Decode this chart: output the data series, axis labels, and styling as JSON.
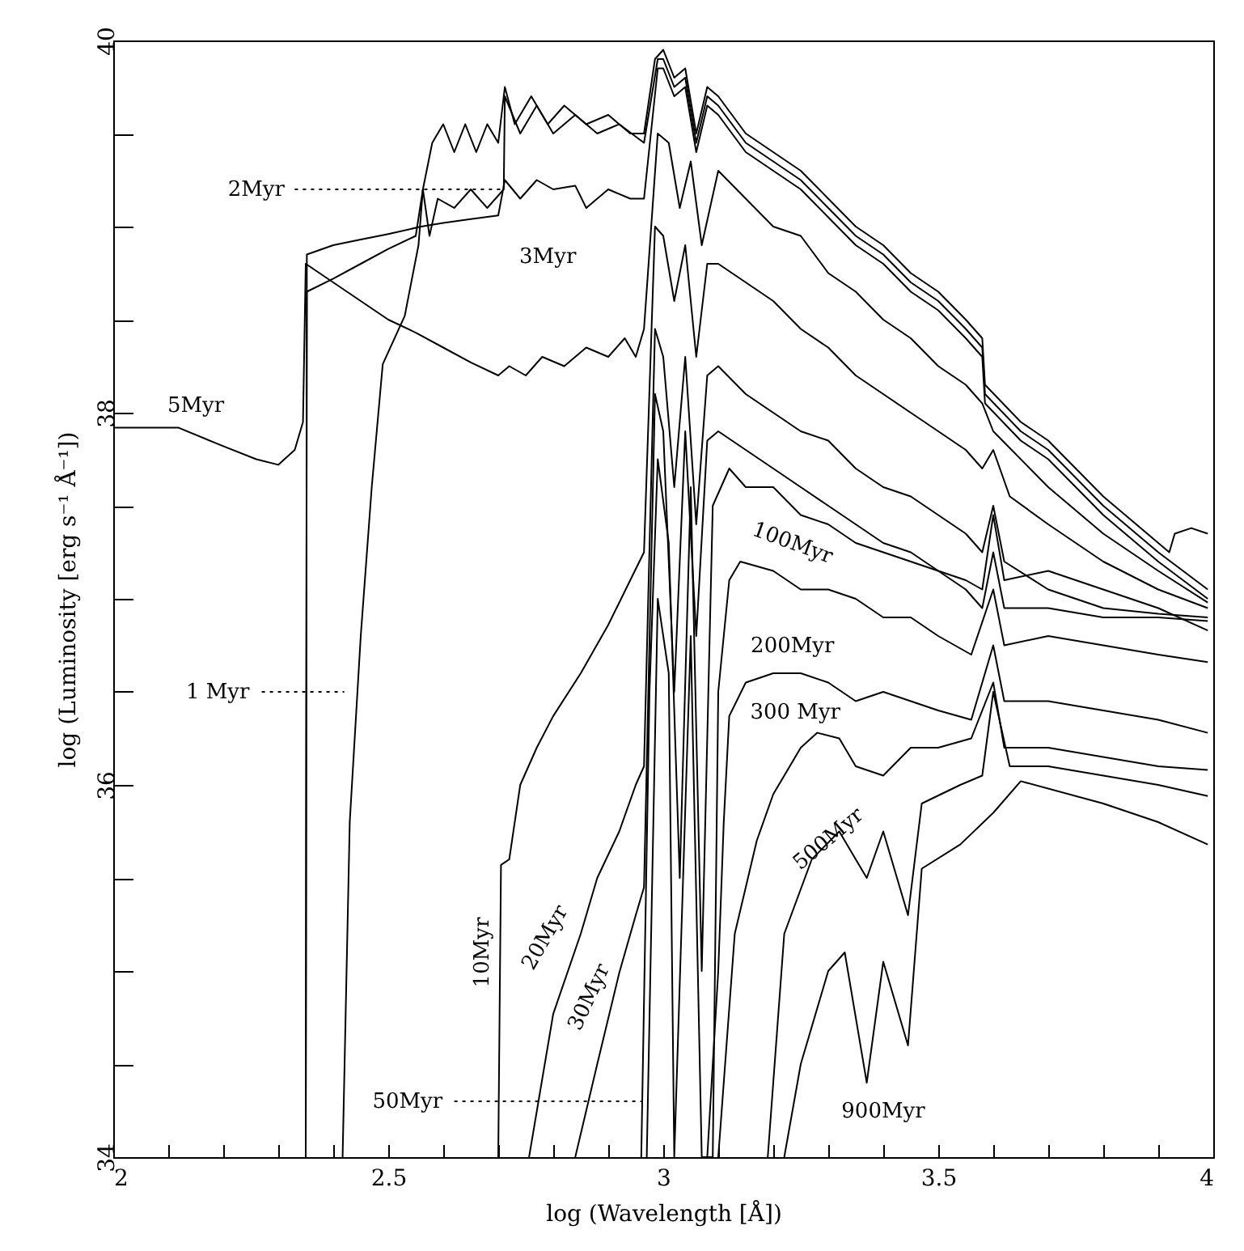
{
  "chart_data": {
    "type": "line",
    "xlabel": "log (Wavelength [Å])",
    "ylabel": "log (Luminosity [erg s⁻¹ Å⁻¹])",
    "xlim": [
      2,
      4
    ],
    "ylim": [
      34,
      40
    ],
    "xticks": [
      2,
      {
        "value": 2.1,
        "label": null
      },
      {
        "value": 2.2,
        "label": null
      },
      {
        "value": 2.3,
        "label": null
      },
      {
        "value": 2.4,
        "label": null
      },
      2.5,
      {
        "value": 2.6,
        "label": null
      },
      {
        "value": 2.7,
        "label": null
      },
      {
        "value": 2.8,
        "label": null
      },
      {
        "value": 2.9,
        "label": null
      },
      3,
      {
        "value": 3.1,
        "label": null
      },
      {
        "value": 3.2,
        "label": null
      },
      {
        "value": 3.3,
        "label": null
      },
      {
        "value": 3.4,
        "label": null
      },
      3.5,
      {
        "value": 3.6,
        "label": null
      },
      {
        "value": 3.7,
        "label": null
      },
      {
        "value": 3.8,
        "label": null
      },
      {
        "value": 3.9,
        "label": null
      },
      4
    ],
    "yticks": [
      34,
      {
        "value": 34.5,
        "label": null
      },
      {
        "value": 35,
        "label": null
      },
      {
        "value": 35.5,
        "label": null
      },
      36,
      {
        "value": 36.5,
        "label": null
      },
      {
        "value": 37,
        "label": null
      },
      {
        "value": 37.5,
        "label": null
      },
      38,
      {
        "value": 38.5,
        "label": null
      },
      {
        "value": 39,
        "label": null
      },
      {
        "value": 39.5,
        "label": null
      },
      40
    ],
    "series": [
      {
        "color": "#000000",
        "x": [
          2.417,
          2.43,
          2.45,
          2.47,
          2.49,
          2.53,
          2.555,
          2.563,
          2.58,
          2.6,
          2.62,
          2.64,
          2.66,
          2.68,
          2.7,
          2.712,
          2.73,
          2.76,
          2.79,
          2.82,
          2.86,
          2.9,
          2.94,
          2.965,
          2.985,
          3.0,
          3.02,
          3.04,
          3.06,
          3.08,
          3.1,
          3.15,
          3.2,
          3.25,
          3.3,
          3.35,
          3.4,
          3.45,
          3.5,
          3.55,
          3.58,
          3.585,
          3.65,
          3.7,
          3.8,
          3.9,
          3.92,
          3.93,
          3.96,
          3.99
        ],
        "values": [
          34,
          35.8,
          36.8,
          37.6,
          38.26,
          38.52,
          38.9,
          39.2,
          39.45,
          39.55,
          39.4,
          39.55,
          39.4,
          39.55,
          39.45,
          39.75,
          39.55,
          39.7,
          39.55,
          39.65,
          39.55,
          39.6,
          39.5,
          39.5,
          39.9,
          39.95,
          39.8,
          39.85,
          39.5,
          39.75,
          39.7,
          39.5,
          39.4,
          39.3,
          39.15,
          39.0,
          38.9,
          38.75,
          38.65,
          38.5,
          38.4,
          38.15,
          37.95,
          37.85,
          37.55,
          37.3,
          37.25,
          37.35,
          37.38,
          37.35
        ]
      },
      {
        "color": "#000000",
        "x": [
          2.35,
          2.352,
          2.4,
          2.45,
          2.5,
          2.55,
          2.563,
          2.575,
          2.59,
          2.62,
          2.65,
          2.68,
          2.71,
          2.712,
          2.74,
          2.77,
          2.8,
          2.84,
          2.88,
          2.92,
          2.965,
          2.99,
          3.0,
          3.02,
          3.04,
          3.06,
          3.08,
          3.1,
          3.15,
          3.2,
          3.25,
          3.3,
          3.35,
          3.4,
          3.45,
          3.5,
          3.55,
          3.58,
          3.585,
          3.65,
          3.7,
          3.8,
          3.9,
          3.99
        ],
        "values": [
          34,
          38.65,
          38.72,
          38.8,
          38.88,
          38.95,
          39.2,
          38.95,
          39.15,
          39.1,
          39.2,
          39.1,
          39.2,
          39.7,
          39.5,
          39.65,
          39.5,
          39.6,
          39.5,
          39.55,
          39.45,
          39.9,
          39.9,
          39.75,
          39.8,
          39.45,
          39.7,
          39.65,
          39.45,
          39.35,
          39.25,
          39.1,
          38.95,
          38.85,
          38.7,
          38.6,
          38.45,
          38.35,
          38.1,
          37.9,
          37.8,
          37.5,
          37.25,
          37.05
        ]
      },
      {
        "color": "#000000",
        "x": [
          2.35,
          2.352,
          2.4,
          2.45,
          2.5,
          2.56,
          2.6,
          2.65,
          2.7,
          2.712,
          2.74,
          2.77,
          2.8,
          2.84,
          2.86,
          2.9,
          2.94,
          2.965,
          2.99,
          3.0,
          3.02,
          3.04,
          3.06,
          3.08,
          3.1,
          3.15,
          3.2,
          3.25,
          3.3,
          3.35,
          3.4,
          3.45,
          3.5,
          3.55,
          3.58,
          3.585,
          3.65,
          3.7,
          3.8,
          3.9,
          3.99
        ],
        "values": [
          34,
          38.85,
          38.9,
          38.93,
          38.96,
          39.0,
          39.02,
          39.04,
          39.06,
          39.25,
          39.15,
          39.25,
          39.2,
          39.22,
          39.1,
          39.2,
          39.15,
          39.15,
          39.85,
          39.85,
          39.7,
          39.75,
          39.4,
          39.65,
          39.6,
          39.4,
          39.3,
          39.2,
          39.05,
          38.9,
          38.8,
          38.65,
          38.55,
          38.4,
          38.3,
          38.05,
          37.85,
          37.75,
          37.45,
          37.2,
          37.0
        ]
      },
      {
        "color": "#000000",
        "x": [
          2,
          2.118,
          2.2,
          2.26,
          2.3,
          2.33,
          2.345,
          2.35,
          2.4,
          2.45,
          2.5,
          2.55,
          2.6,
          2.65,
          2.7,
          2.72,
          2.75,
          2.78,
          2.82,
          2.86,
          2.9,
          2.93,
          2.95,
          2.965,
          2.99,
          3.01,
          3.03,
          3.05,
          3.07,
          3.1,
          3.15,
          3.2,
          3.25,
          3.3,
          3.35,
          3.4,
          3.45,
          3.5,
          3.55,
          3.58,
          3.6,
          3.7,
          3.8,
          3.9,
          3.99
        ],
        "values": [
          37.92,
          37.92,
          37.82,
          37.75,
          37.72,
          37.8,
          37.95,
          38.8,
          38.7,
          38.6,
          38.5,
          38.43,
          38.35,
          38.27,
          38.2,
          38.25,
          38.2,
          38.3,
          38.25,
          38.35,
          38.3,
          38.4,
          38.3,
          38.45,
          39.5,
          39.45,
          39.1,
          39.35,
          38.9,
          39.3,
          39.15,
          39.0,
          38.95,
          38.75,
          38.65,
          38.5,
          38.4,
          38.25,
          38.15,
          38.05,
          37.9,
          37.6,
          37.35,
          37.15,
          36.98
        ]
      },
      {
        "color": "#000000",
        "x": [
          2.7,
          2.705,
          2.72,
          2.74,
          2.77,
          2.8,
          2.85,
          2.9,
          2.94,
          2.965,
          2.985,
          3.0,
          3.02,
          3.04,
          3.06,
          3.08,
          3.1,
          3.15,
          3.2,
          3.25,
          3.3,
          3.35,
          3.4,
          3.45,
          3.5,
          3.55,
          3.58,
          3.6,
          3.63,
          3.7,
          3.8,
          3.9,
          3.99
        ],
        "values": [
          34,
          35.57,
          35.6,
          36.0,
          36.2,
          36.37,
          36.6,
          36.86,
          37.1,
          37.25,
          39.0,
          38.95,
          38.6,
          38.9,
          38.3,
          38.8,
          38.8,
          38.7,
          38.6,
          38.45,
          38.35,
          38.2,
          38.1,
          38.0,
          37.9,
          37.8,
          37.7,
          37.8,
          37.55,
          37.4,
          37.2,
          37.05,
          36.95
        ]
      },
      {
        "color": "#000000",
        "x": [
          2.756,
          2.8,
          2.85,
          2.88,
          2.92,
          2.95,
          2.965,
          2.985,
          3.0,
          3.02,
          3.04,
          3.06,
          3.08,
          3.1,
          3.15,
          3.2,
          3.25,
          3.3,
          3.35,
          3.4,
          3.45,
          3.5,
          3.55,
          3.58,
          3.6,
          3.62,
          3.7,
          3.8,
          3.9,
          3.99
        ],
        "values": [
          34,
          34.77,
          35.2,
          35.5,
          35.75,
          36.0,
          36.1,
          38.45,
          38.3,
          37.6,
          38.3,
          37.4,
          38.2,
          38.25,
          38.1,
          38.0,
          37.9,
          37.85,
          37.7,
          37.6,
          37.55,
          37.45,
          37.35,
          37.25,
          37.5,
          37.2,
          37.05,
          36.95,
          36.92,
          36.9
        ]
      },
      {
        "color": "#000000",
        "x": [
          2.84,
          2.88,
          2.92,
          2.95,
          2.965,
          2.985,
          3.0,
          3.02,
          3.04,
          3.06,
          3.08,
          3.1,
          3.15,
          3.2,
          3.25,
          3.3,
          3.35,
          3.4,
          3.45,
          3.5,
          3.55,
          3.58,
          3.6,
          3.62,
          3.7,
          3.8,
          3.9,
          3.99
        ],
        "values": [
          34,
          34.5,
          34.99,
          35.3,
          35.45,
          38.1,
          37.9,
          36.5,
          37.9,
          36.8,
          37.85,
          37.9,
          37.8,
          37.7,
          37.6,
          37.5,
          37.4,
          37.3,
          37.25,
          37.15,
          37.05,
          36.95,
          37.25,
          36.95,
          36.95,
          36.9,
          36.9,
          36.88
        ]
      },
      {
        "color": "#000000",
        "x": [
          2.96,
          2.975,
          2.99,
          3.01,
          3.03,
          3.05,
          3.07,
          3.09,
          3.12,
          3.15,
          3.2,
          3.25,
          3.3,
          3.35,
          3.4,
          3.45,
          3.5,
          3.55,
          3.58,
          3.6,
          3.62,
          3.7,
          3.8,
          3.9,
          3.99
        ],
        "values": [
          34,
          36.5,
          37.75,
          37.3,
          35.5,
          37.6,
          35.0,
          37.5,
          37.7,
          37.6,
          37.6,
          37.45,
          37.4,
          37.3,
          37.25,
          37.2,
          37.15,
          37.1,
          37.05,
          37.45,
          37.1,
          37.15,
          37.05,
          36.95,
          36.83
        ]
      },
      {
        "color": "#000000",
        "x": [
          2.97,
          2.99,
          3.01,
          3.02,
          3.05,
          3.07,
          3.09,
          3.1,
          3.12,
          3.14,
          3.2,
          3.25,
          3.3,
          3.35,
          3.4,
          3.45,
          3.5,
          3.56,
          3.6,
          3.62,
          3.7,
          3.8,
          3.9,
          3.99
        ],
        "values": [
          34,
          37.0,
          36.6,
          34,
          36.8,
          34,
          34,
          36.5,
          37.1,
          37.2,
          37.15,
          37.05,
          37.05,
          37.0,
          36.9,
          36.9,
          36.8,
          36.7,
          37.05,
          36.75,
          36.8,
          36.75,
          36.7,
          36.66
        ]
      },
      {
        "color": "#000000",
        "x": [
          3.08,
          3.1,
          3.11,
          3.12,
          3.15,
          3.2,
          3.25,
          3.3,
          3.35,
          3.4,
          3.45,
          3.5,
          3.56,
          3.6,
          3.62,
          3.7,
          3.8,
          3.9,
          3.99
        ],
        "values": [
          34,
          35.0,
          35.8,
          36.37,
          36.55,
          36.6,
          36.6,
          36.55,
          36.45,
          36.5,
          36.45,
          36.4,
          36.35,
          36.75,
          36.45,
          36.45,
          36.4,
          36.35,
          36.28
        ]
      },
      {
        "color": "#000000",
        "x": [
          3.1,
          3.13,
          3.17,
          3.2,
          3.25,
          3.28,
          3.32,
          3.35,
          3.4,
          3.45,
          3.5,
          3.56,
          3.6,
          3.62,
          3.7,
          3.8,
          3.9,
          3.99
        ],
        "values": [
          34,
          35.2,
          35.7,
          35.95,
          36.2,
          36.28,
          36.25,
          36.1,
          36.05,
          36.2,
          36.2,
          36.25,
          36.55,
          36.2,
          36.2,
          36.15,
          36.1,
          36.08
        ]
      },
      {
        "color": "#000000",
        "x": [
          3.19,
          3.22,
          3.27,
          3.32,
          3.37,
          3.4,
          3.445,
          3.47,
          3.54,
          3.58,
          3.6,
          3.63,
          3.7,
          3.8,
          3.9,
          3.99
        ],
        "values": [
          34,
          35.2,
          35.6,
          35.75,
          35.5,
          35.75,
          35.3,
          35.9,
          36.0,
          36.05,
          36.5,
          36.1,
          36.1,
          36.05,
          36.0,
          35.94
        ]
      },
      {
        "color": "#000000",
        "x": [
          3.22,
          3.25,
          3.3,
          3.33,
          3.37,
          3.4,
          3.445,
          3.47,
          3.54,
          3.6,
          3.65,
          3.8,
          3.9,
          3.99
        ],
        "values": [
          34,
          34.5,
          35.0,
          35.1,
          34.4,
          35.05,
          34.6,
          35.55,
          35.68,
          35.85,
          36.02,
          35.9,
          35.8,
          35.68
        ]
      },
      {
        "type": "line",
        "line_style": "dotted",
        "color": "#000000",
        "x": [
          2.33,
          2.71
        ],
        "values": [
          39.2,
          39.2
        ]
      },
      {
        "type": "line",
        "line_style": "dotted",
        "color": "#000000",
        "x": [
          2.27,
          2.42
        ],
        "values": [
          36.5,
          36.5
        ]
      },
      {
        "type": "line",
        "line_style": "dotted",
        "color": "#000000",
        "x": [
          2.62,
          2.96
        ],
        "values": [
          34.3,
          34.3
        ]
      }
    ],
    "annotations": [
      "2Myr",
      "3Myr",
      "5Myr",
      "1 Myr",
      "10Myr",
      "20Myr",
      "30Myr",
      "50Myr",
      "100Myr",
      "200Myr",
      "300 Myr",
      "500Myr",
      "900Myr"
    ]
  }
}
